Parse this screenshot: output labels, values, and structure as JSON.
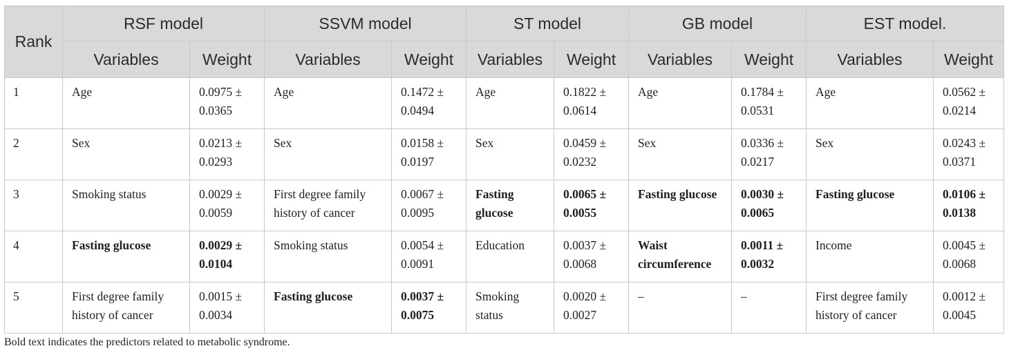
{
  "header": {
    "rank": "Rank",
    "models": [
      "RSF model",
      "SSVM model",
      "ST model",
      "GB model",
      "EST model."
    ],
    "variables": "Variables",
    "weight": "Weight"
  },
  "rows": [
    {
      "rank": "1",
      "cells": [
        {
          "v": "Age",
          "w": "0.0975 ± 0.0365",
          "bold": false
        },
        {
          "v": "Age",
          "w": "0.1472 ± 0.0494",
          "bold": false
        },
        {
          "v": "Age",
          "w": "0.1822 ± 0.0614",
          "bold": false
        },
        {
          "v": "Age",
          "w": "0.1784 ± 0.0531",
          "bold": false
        },
        {
          "v": "Age",
          "w": "0.0562 ± 0.0214",
          "bold": false
        }
      ]
    },
    {
      "rank": "2",
      "cells": [
        {
          "v": "Sex",
          "w": "0.0213 ± 0.0293",
          "bold": false
        },
        {
          "v": "Sex",
          "w": "0.0158 ± 0.0197",
          "bold": false
        },
        {
          "v": "Sex",
          "w": "0.0459 ± 0.0232",
          "bold": false
        },
        {
          "v": "Sex",
          "w": "0.0336 ± 0.0217",
          "bold": false
        },
        {
          "v": "Sex",
          "w": "0.0243 ± 0.0371",
          "bold": false
        }
      ]
    },
    {
      "rank": "3",
      "cells": [
        {
          "v": "Smoking status",
          "w": "0.0029 ± 0.0059",
          "bold": false
        },
        {
          "v": "First degree family history of cancer",
          "w": "0.0067 ± 0.0095",
          "bold": false
        },
        {
          "v": "Fasting glucose",
          "w": "0.0065 ± 0.0055",
          "bold": true
        },
        {
          "v": "Fasting glucose",
          "w": "0.0030 ± 0.0065",
          "bold": true
        },
        {
          "v": "Fasting glucose",
          "w": "0.0106 ± 0.0138",
          "bold": true
        }
      ]
    },
    {
      "rank": "4",
      "cells": [
        {
          "v": "Fasting glucose",
          "w": "0.0029 ± 0.0104",
          "bold": true
        },
        {
          "v": "Smoking status",
          "w": "0.0054 ± 0.0091",
          "bold": false
        },
        {
          "v": "Education",
          "w": "0.0037 ± 0.0068",
          "bold": false
        },
        {
          "v": "Waist circumference",
          "w": "0.0011 ± 0.0032",
          "bold": true
        },
        {
          "v": "Income",
          "w": "0.0045 ± 0.0068",
          "bold": false
        }
      ]
    },
    {
      "rank": "5",
      "cells": [
        {
          "v": "First degree family history of cancer",
          "w": "0.0015 ± 0.0034",
          "bold": false
        },
        {
          "v": "Fasting glucose",
          "w": "0.0037 ± 0.0075",
          "bold": true
        },
        {
          "v": "Smoking status",
          "w": "0.0020 ± 0.0027",
          "bold": false
        },
        {
          "v": "–",
          "w": "–",
          "bold": false
        },
        {
          "v": "First degree family history of cancer",
          "w": "0.0012 ± 0.0045",
          "bold": false
        }
      ]
    }
  ],
  "footnote": "Bold text indicates the predictors related to metabolic syndrome."
}
